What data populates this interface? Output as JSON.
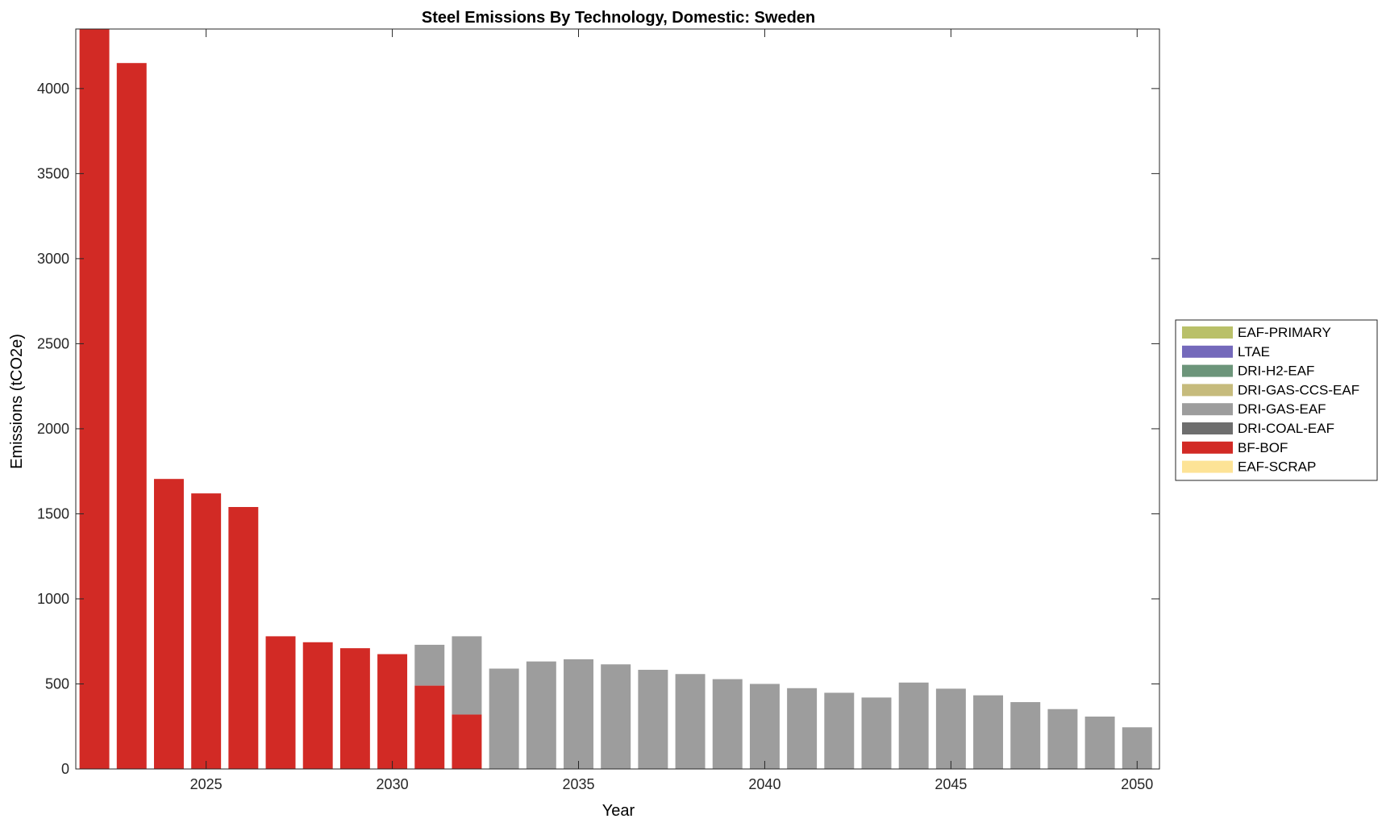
{
  "chart_data": {
    "type": "bar",
    "stacked": true,
    "title": "Steel Emissions By Technology, Domestic: Sweden",
    "xlabel": "Year",
    "ylabel": "Emissions (tCO2e)",
    "xlim": [
      2021.5,
      2050.6
    ],
    "ylim": [
      0,
      4350
    ],
    "xticks": [
      2025,
      2030,
      2035,
      2040,
      2045,
      2050
    ],
    "yticks": [
      0,
      500,
      1000,
      1500,
      2000,
      2500,
      3000,
      3500,
      4000
    ],
    "categories": [
      2022,
      2023,
      2024,
      2025,
      2026,
      2027,
      2028,
      2029,
      2030,
      2031,
      2032,
      2033,
      2034,
      2035,
      2036,
      2037,
      2038,
      2039,
      2040,
      2041,
      2042,
      2043,
      2044,
      2045,
      2046,
      2047,
      2048,
      2049,
      2050
    ],
    "legend_position": "right",
    "legend": [
      "EAF-PRIMARY",
      "LTAE",
      "DRI-H2-EAF",
      "DRI-GAS-CCS-EAF",
      "DRI-GAS-EAF",
      "DRI-COAL-EAF",
      "BF-BOF",
      "EAF-SCRAP"
    ],
    "series": [
      {
        "name": "EAF-SCRAP",
        "color": "#fde396",
        "values": [
          0,
          0,
          0,
          0,
          0,
          0,
          0,
          0,
          0,
          0,
          0,
          0,
          0,
          0,
          0,
          0,
          0,
          0,
          0,
          0,
          0,
          0,
          0,
          0,
          0,
          0,
          0,
          0,
          0
        ]
      },
      {
        "name": "BF-BOF",
        "color": "#d22a25",
        "values": [
          4350,
          4150,
          1705,
          1620,
          1540,
          780,
          745,
          710,
          675,
          490,
          320,
          0,
          0,
          0,
          0,
          0,
          0,
          0,
          0,
          0,
          0,
          0,
          0,
          0,
          0,
          0,
          0,
          0,
          0
        ]
      },
      {
        "name": "DRI-COAL-EAF",
        "color": "#6e6e6e",
        "values": [
          0,
          0,
          0,
          0,
          0,
          0,
          0,
          0,
          0,
          0,
          0,
          0,
          0,
          0,
          0,
          0,
          0,
          0,
          0,
          0,
          0,
          0,
          0,
          0,
          0,
          0,
          0,
          0,
          0
        ]
      },
      {
        "name": "DRI-GAS-EAF",
        "color": "#9d9d9d",
        "values": [
          0,
          0,
          0,
          0,
          0,
          0,
          0,
          0,
          0,
          240,
          460,
          590,
          632,
          645,
          615,
          583,
          558,
          528,
          500,
          475,
          448,
          420,
          508,
          472,
          433,
          393,
          352,
          308,
          245
        ]
      },
      {
        "name": "DRI-GAS-CCS-EAF",
        "color": "#c6bb7c",
        "values": [
          0,
          0,
          0,
          0,
          0,
          0,
          0,
          0,
          0,
          0,
          0,
          0,
          0,
          0,
          0,
          0,
          0,
          0,
          0,
          0,
          0,
          0,
          0,
          0,
          0,
          0,
          0,
          0,
          0
        ]
      },
      {
        "name": "DRI-H2-EAF",
        "color": "#6c957a",
        "values": [
          0,
          0,
          0,
          0,
          0,
          0,
          0,
          0,
          0,
          0,
          0,
          0,
          0,
          0,
          0,
          0,
          0,
          0,
          0,
          0,
          0,
          0,
          0,
          0,
          0,
          0,
          0,
          0,
          0
        ]
      },
      {
        "name": "LTAE",
        "color": "#7469bb",
        "values": [
          0,
          0,
          0,
          0,
          0,
          0,
          0,
          0,
          0,
          0,
          0,
          0,
          0,
          0,
          0,
          0,
          0,
          0,
          0,
          0,
          0,
          0,
          0,
          0,
          0,
          0,
          0,
          0,
          0
        ]
      },
      {
        "name": "EAF-PRIMARY",
        "color": "#b9c069",
        "values": [
          0,
          0,
          0,
          0,
          0,
          0,
          0,
          0,
          0,
          0,
          0,
          0,
          0,
          0,
          0,
          0,
          0,
          0,
          0,
          0,
          0,
          0,
          0,
          0,
          0,
          0,
          0,
          0,
          0
        ]
      }
    ]
  }
}
